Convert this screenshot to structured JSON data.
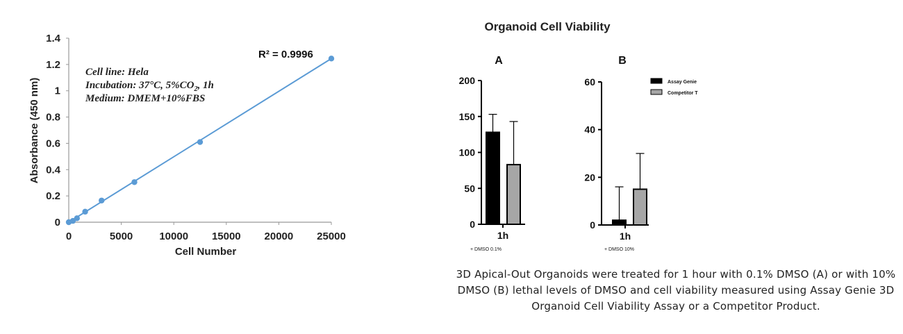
{
  "chart_data": [
    {
      "type": "scatter",
      "title": "",
      "xlabel": "Cell Number",
      "ylabel": "Absorbance (450 nm)",
      "xlim": [
        0,
        25000
      ],
      "ylim": [
        0,
        1.4
      ],
      "x_ticks": [
        "0",
        "5000",
        "10000",
        "15000",
        "20000",
        "25000"
      ],
      "y_ticks": [
        "0",
        "0.2",
        "0.4",
        "0.6",
        "0.8",
        "1",
        "1.2",
        "1.4"
      ],
      "points": [
        {
          "x": 0,
          "y": 0.0
        },
        {
          "x": 390,
          "y": 0.01
        },
        {
          "x": 780,
          "y": 0.03
        },
        {
          "x": 1560,
          "y": 0.08
        },
        {
          "x": 3125,
          "y": 0.165
        },
        {
          "x": 6250,
          "y": 0.305
        },
        {
          "x": 12500,
          "y": 0.61
        },
        {
          "x": 25000,
          "y": 1.245
        }
      ],
      "fit_line": {
        "x": [
          0,
          25000
        ],
        "y": [
          0.0,
          1.245
        ]
      },
      "annotation_lines": [
        "Cell line: Hela",
        "Incubation: 37°C, 5%CO",
        "Medium: DMEM+10%FBS"
      ],
      "annotation_co2_sub": "2",
      "annotation_co2_tail": ", 1h",
      "r_squared": "R² = 0.9996",
      "color": "#5b9bd5",
      "grid": false
    },
    {
      "type": "bar",
      "panel": "A",
      "categories": [
        "1h"
      ],
      "note": "+ DMSO 0.1%",
      "ylim": [
        0,
        200
      ],
      "y_ticks": [
        "0",
        "50",
        "100",
        "150",
        "200"
      ],
      "series": [
        {
          "name": "Assay Genie",
          "values": [
            128
          ],
          "error": [
            25
          ],
          "color": "#000000"
        },
        {
          "name": "Competitor T",
          "values": [
            83
          ],
          "error": [
            60
          ],
          "color": "#a6a6a6"
        }
      ]
    },
    {
      "type": "bar",
      "panel": "B",
      "categories": [
        "1h"
      ],
      "note": "+ DMSO 10%",
      "ylim": [
        0,
        60
      ],
      "y_ticks": [
        "0",
        "20",
        "40",
        "60"
      ],
      "series": [
        {
          "name": "Assay Genie",
          "values": [
            2
          ],
          "error": [
            14
          ],
          "color": "#000000"
        },
        {
          "name": "Competitor T",
          "values": [
            15
          ],
          "error": [
            15
          ],
          "color": "#a6a6a6"
        }
      ],
      "legend": "top-right"
    }
  ],
  "figure2_title": "Organoid Cell Viability",
  "caption": "3D Apical-Out Organoids were treated for 1 hour with 0.1% DMSO (A) or with 10% DMSO (B) lethal levels of DMSO and cell viability measured using Assay Genie 3D  Organoid Cell Viability Assay or a Competitor Product."
}
